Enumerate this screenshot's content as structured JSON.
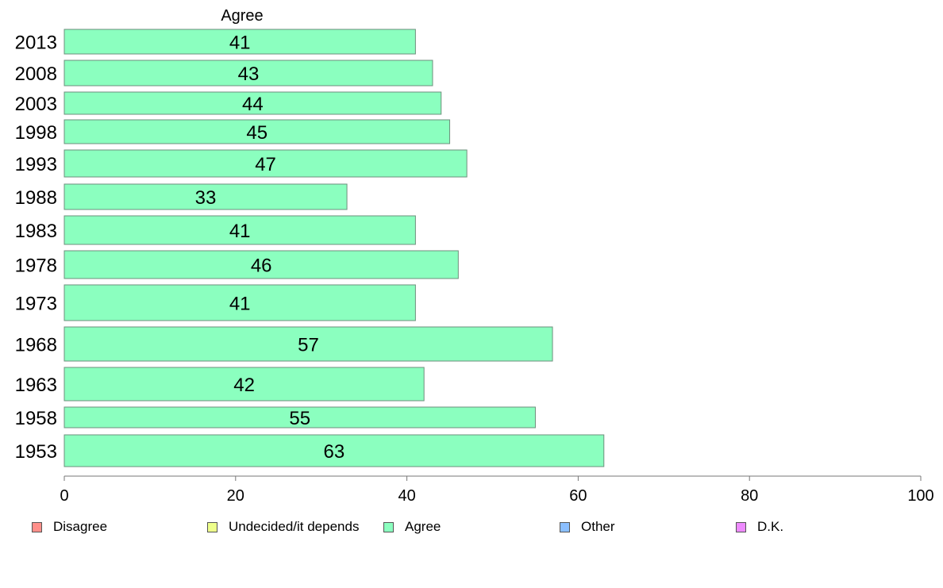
{
  "chart_data": {
    "type": "bar",
    "orientation": "horizontal",
    "title": "Agree",
    "categories": [
      "2013",
      "2008",
      "2003",
      "1998",
      "1993",
      "1988",
      "1983",
      "1978",
      "1973",
      "1968",
      "1963",
      "1958",
      "1953"
    ],
    "series": [
      {
        "name": "Agree",
        "color": "#8bffbf",
        "values": [
          41,
          43,
          44,
          45,
          47,
          33,
          41,
          46,
          41,
          57,
          42,
          55,
          63
        ]
      }
    ],
    "xlim": [
      0,
      100
    ],
    "xticks": [
      "0",
      "20",
      "40",
      "60",
      "80",
      "100"
    ],
    "xlabel": "",
    "ylabel": "",
    "grid": false,
    "legend": {
      "placement": "bottom",
      "entries": [
        {
          "label": "Disagree",
          "color": "#ff8f8a"
        },
        {
          "label": "Undecided/it depends",
          "color": "#eeff8b"
        },
        {
          "label": "Agree",
          "color": "#8bffbf"
        },
        {
          "label": "Other",
          "color": "#8bbfff"
        },
        {
          "label": "D.K.",
          "color": "#ee8bff"
        }
      ]
    }
  }
}
